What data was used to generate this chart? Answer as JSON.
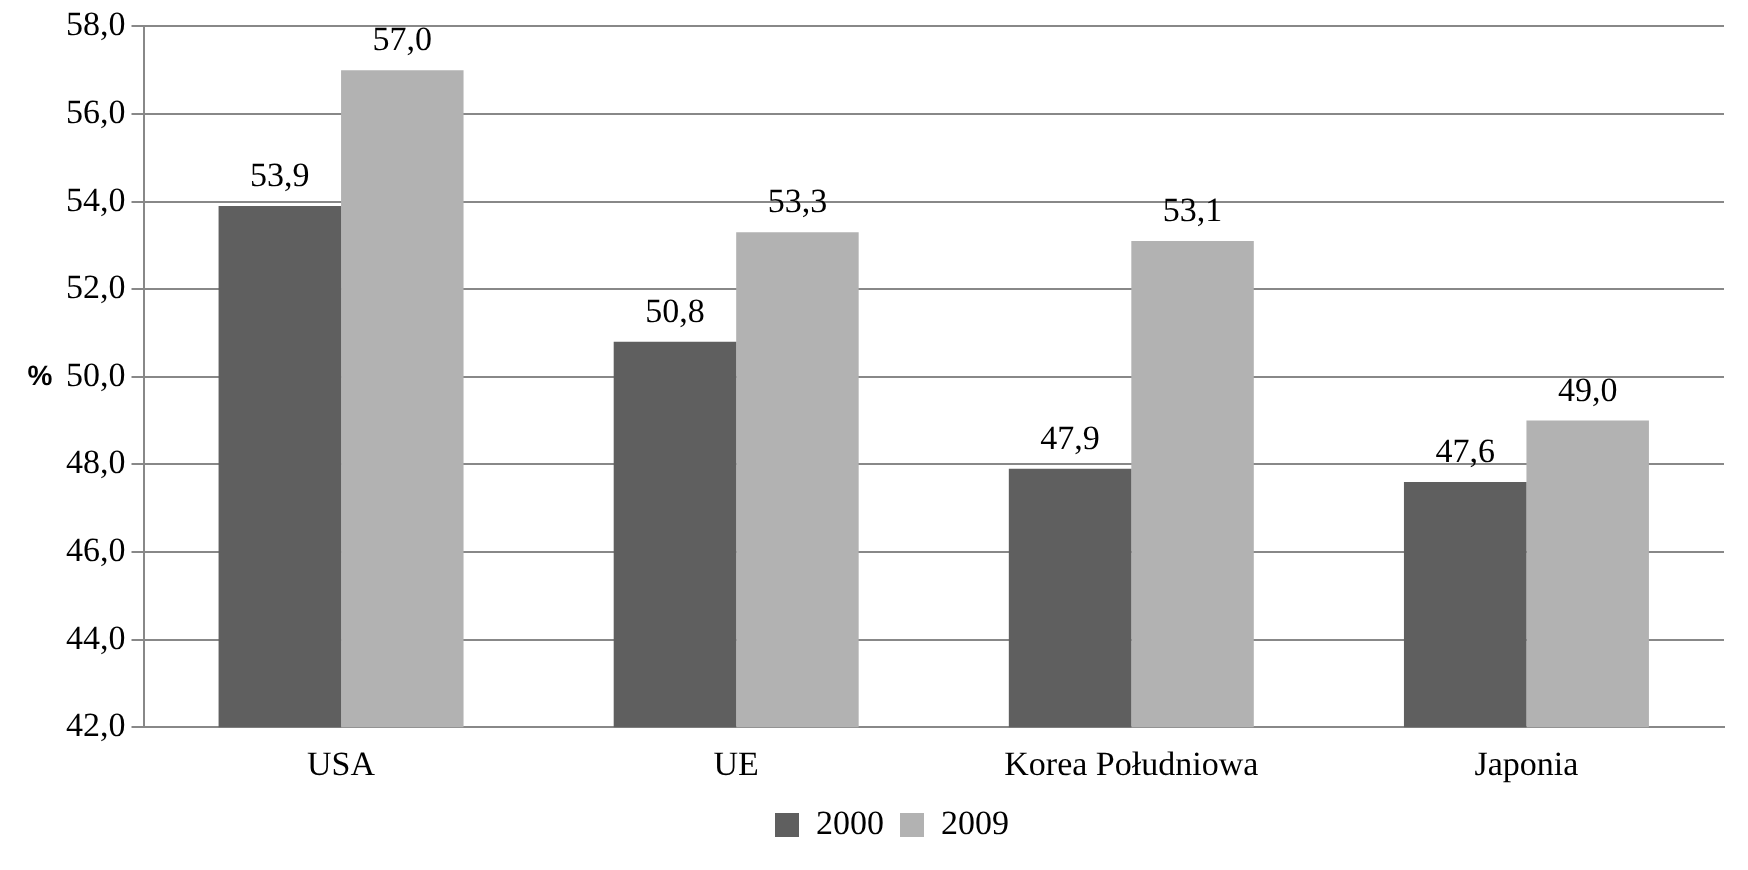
{
  "chart_data": {
    "type": "bar",
    "ylabel": "%",
    "categories": [
      "USA",
      "UE",
      "Korea Południowa",
      "Japonia"
    ],
    "series": [
      {
        "name": "2000",
        "color": "#5f5f5f",
        "values": [
          53.9,
          50.8,
          47.9,
          47.6
        ],
        "value_labels": [
          "53,9",
          "50,8",
          "47,9",
          "47,6"
        ]
      },
      {
        "name": "2009",
        "color": "#b2b2b2",
        "values": [
          57.0,
          53.3,
          53.1,
          49.0
        ],
        "value_labels": [
          "57,0",
          "53,3",
          "53,1",
          "49,0"
        ]
      }
    ],
    "ylim": [
      42,
      58
    ],
    "yticks": [
      {
        "value": 42,
        "label": "42,0"
      },
      {
        "value": 44,
        "label": "44,0"
      },
      {
        "value": 46,
        "label": "46,0"
      },
      {
        "value": 48,
        "label": "48,0"
      },
      {
        "value": 50,
        "label": "50,0"
      },
      {
        "value": 52,
        "label": "52,0"
      },
      {
        "value": 54,
        "label": "54,0"
      },
      {
        "value": 56,
        "label": "56,0"
      },
      {
        "value": 58,
        "label": "58,0"
      }
    ],
    "grid": "y",
    "legend": "bottom"
  }
}
